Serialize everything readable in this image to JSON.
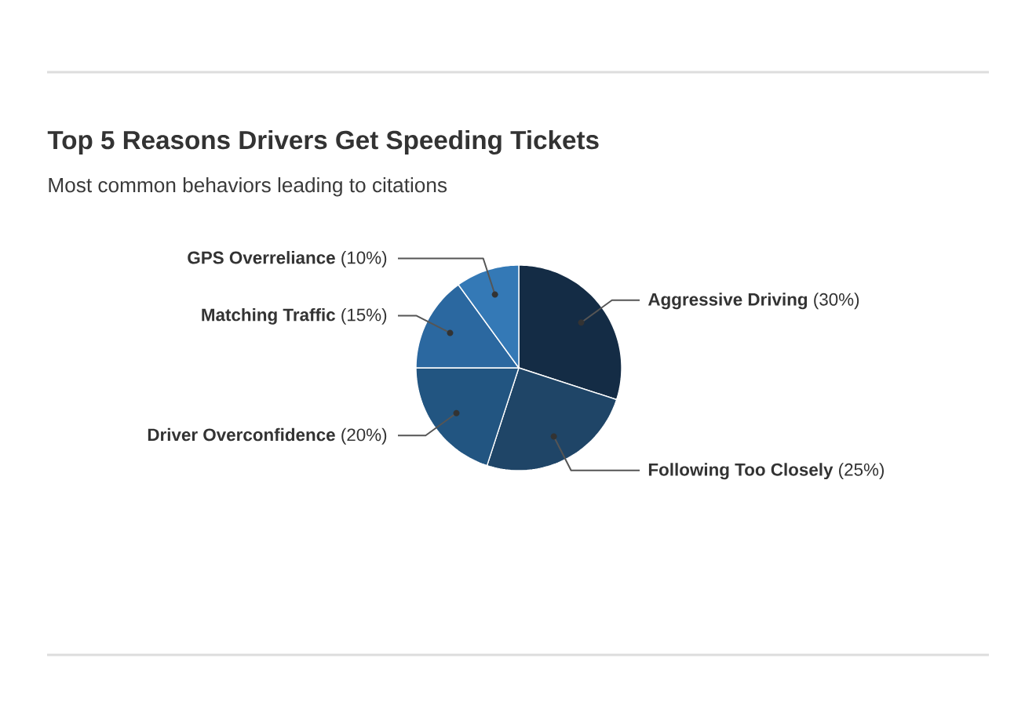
{
  "chart_data": {
    "type": "pie",
    "title": "Top 5 Reasons Drivers Get Speeding Tickets",
    "subtitle": "Most common behaviors leading to citations",
    "categories": [
      "Aggressive Driving",
      "Following Too Closely",
      "Driver Overconfidence",
      "Matching Traffic",
      "GPS Overreliance"
    ],
    "values": [
      30,
      25,
      20,
      15,
      10
    ],
    "colors": [
      "#142c45",
      "#1f4567",
      "#225581",
      "#2b68a0",
      "#3479b6"
    ],
    "value_labels": [
      "(30%)",
      "(25%)",
      "(20%)",
      "(15%)",
      "(10%)"
    ]
  }
}
